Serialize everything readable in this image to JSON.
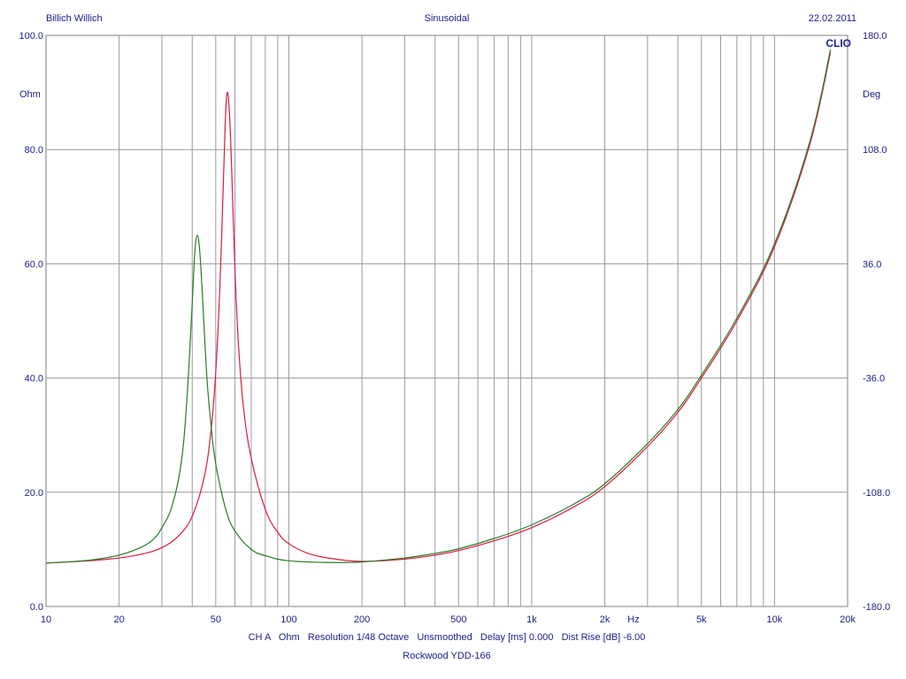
{
  "header": {
    "left": "Billich Willich",
    "center": "Sinusoidal",
    "right": "22.02.2011",
    "brand": "CLIO"
  },
  "footer": {
    "settings": "CH A   Ohm   Resolution 1/48 Octave   Unsmoothed   Delay [ms] 0.000   Dist Rise [dB] -6.00",
    "device": "Rockwood YDD-166"
  },
  "chart_data": {
    "type": "line",
    "title": "",
    "xlabel": "Hz",
    "ylabel": "Ohm",
    "ylabel_right": "Deg",
    "x_scale": "log",
    "xlim": [
      10,
      20000
    ],
    "ylim": [
      0,
      100
    ],
    "ylim_right": [
      -180,
      180
    ],
    "grid": true,
    "x_ticks": [
      {
        "value": 10,
        "label": "10"
      },
      {
        "value": 20,
        "label": "20"
      },
      {
        "value": 50,
        "label": "50"
      },
      {
        "value": 100,
        "label": "100"
      },
      {
        "value": 200,
        "label": "200"
      },
      {
        "value": 500,
        "label": "500"
      },
      {
        "value": 1000,
        "label": "1k"
      },
      {
        "value": 2000,
        "label": "2k"
      },
      {
        "value": 5000,
        "label": "5k"
      },
      {
        "value": 10000,
        "label": "10k"
      },
      {
        "value": 20000,
        "label": "20k"
      }
    ],
    "y_ticks_left": [
      {
        "value": 0,
        "label": "0.0"
      },
      {
        "value": 20,
        "label": "20.0"
      },
      {
        "value": 40,
        "label": "40.0"
      },
      {
        "value": 60,
        "label": "60.0"
      },
      {
        "value": 80,
        "label": "80.0"
      },
      {
        "value": 100,
        "label": "100.0"
      }
    ],
    "y_ticks_right": [
      {
        "value": -180,
        "label": "-180.0"
      },
      {
        "value": -108,
        "label": "-108.0"
      },
      {
        "value": -36,
        "label": "-36.0"
      },
      {
        "value": 36,
        "label": "36.0"
      },
      {
        "value": 108,
        "label": "108.0"
      },
      {
        "value": 180,
        "label": "180.0"
      }
    ],
    "series": [
      {
        "color": "#d81b3c",
        "x": [
          10,
          15,
          20,
          25,
          30,
          35,
          40,
          45,
          48,
          50,
          52,
          54,
          55,
          56,
          57,
          58,
          60,
          62,
          65,
          70,
          80,
          90,
          100,
          120,
          150,
          200,
          300,
          400,
          500,
          700,
          1000,
          1500,
          2000,
          3000,
          4000,
          5000,
          7000,
          10000,
          14000,
          17000
        ],
        "y": [
          7.6,
          8.0,
          8.5,
          9.2,
          10.3,
          12.3,
          15.8,
          23.0,
          31.5,
          41.0,
          56.0,
          77.0,
          87.0,
          90.0,
          86.0,
          78.0,
          59.0,
          46.0,
          35.0,
          26.0,
          17.0,
          13.0,
          11.0,
          9.3,
          8.4,
          7.9,
          8.3,
          9.0,
          9.8,
          11.5,
          13.8,
          17.5,
          21.0,
          28.0,
          34.0,
          40.0,
          50.0,
          63.0,
          81.0,
          97.0
        ]
      },
      {
        "color": "#2a7a2a",
        "x": [
          10,
          15,
          20,
          25,
          28,
          30,
          33,
          36,
          38,
          40,
          41,
          42,
          43,
          44,
          46,
          48,
          50,
          55,
          60,
          70,
          80,
          100,
          150,
          200,
          300,
          400,
          500,
          700,
          1000,
          1500,
          2000,
          3000,
          4000,
          5000,
          7000,
          10000,
          14000,
          17000
        ],
        "y": [
          7.6,
          8.1,
          9.0,
          10.5,
          12.0,
          13.8,
          17.5,
          25.0,
          36.0,
          53.0,
          62.0,
          65.0,
          62.0,
          55.0,
          40.0,
          31.0,
          25.0,
          17.0,
          13.2,
          10.0,
          8.9,
          8.0,
          7.7,
          7.8,
          8.5,
          9.3,
          10.1,
          11.9,
          14.3,
          18.0,
          21.5,
          28.5,
          34.5,
          40.5,
          50.5,
          63.5,
          81.5,
          97.5
        ]
      }
    ]
  }
}
